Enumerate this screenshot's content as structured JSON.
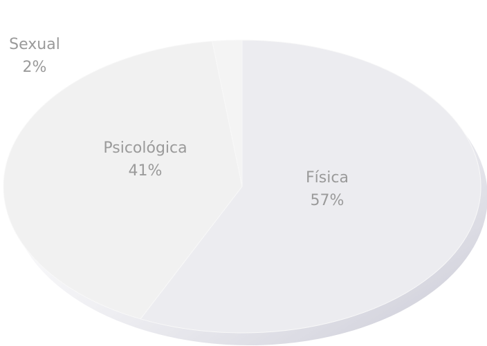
{
  "chart_data": {
    "type": "pie",
    "categories": [
      "Física",
      "Psicológica",
      "Sexual"
    ],
    "values": [
      57,
      41,
      2
    ],
    "value_labels": [
      "57%",
      "41%",
      "2%"
    ],
    "colors": [
      "#ececf0",
      "#f1f1f1",
      "#f4f4f4"
    ]
  }
}
